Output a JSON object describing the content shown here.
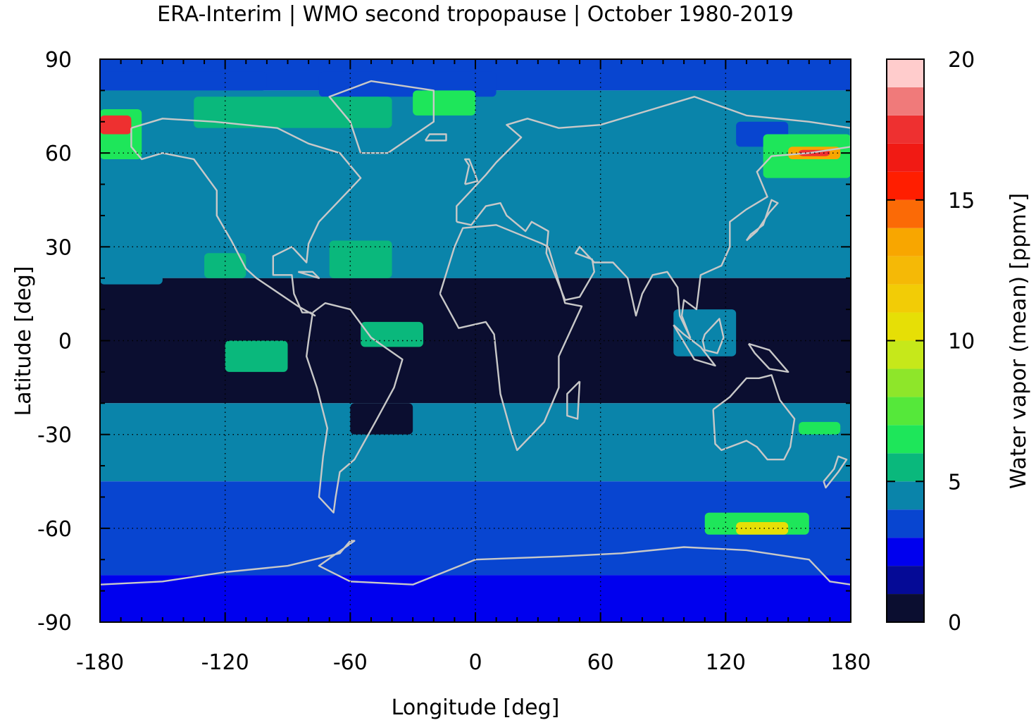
{
  "chart_data": {
    "type": "heatmap",
    "title": "ERA-Interim | WMO second tropopause | October 1980-2019",
    "xlabel": "Longitude [deg]",
    "ylabel": "Latitude [deg]",
    "colorbar_label": "Water vapor (mean) [ppmv]",
    "xlim": [
      -180,
      180
    ],
    "ylim": [
      -90,
      90
    ],
    "x_ticks": [
      "-180",
      "-120",
      "-60",
      "0",
      "60",
      "120",
      "180"
    ],
    "y_ticks": [
      "90",
      "60",
      "30",
      "0",
      "-30",
      "-60",
      "-90"
    ],
    "x_tick_values": [
      -180,
      -120,
      -60,
      0,
      60,
      120,
      180
    ],
    "y_tick_values": [
      90,
      60,
      30,
      0,
      -30,
      -60,
      -90
    ],
    "colorbar_ticks": [
      "20",
      "15",
      "10",
      "5",
      "0"
    ],
    "colorbar_tick_values": [
      20,
      15,
      10,
      5,
      0
    ],
    "colorbar_range": [
      0,
      20
    ],
    "grid": true,
    "coastlines": true,
    "colorbar_levels": [
      {
        "lo": 0,
        "hi": 1,
        "color": "#0b0e30"
      },
      {
        "lo": 1,
        "hi": 2,
        "color": "#050a96"
      },
      {
        "lo": 2,
        "hi": 3,
        "color": "#0000ee"
      },
      {
        "lo": 3,
        "hi": 4,
        "color": "#0845d0"
      },
      {
        "lo": 4,
        "hi": 5,
        "color": "#0a84aa"
      },
      {
        "lo": 5,
        "hi": 6,
        "color": "#0ab87c"
      },
      {
        "lo": 6,
        "hi": 7,
        "color": "#1ee65a"
      },
      {
        "lo": 7,
        "hi": 8,
        "color": "#55e83a"
      },
      {
        "lo": 8,
        "hi": 9,
        "color": "#8ee62a"
      },
      {
        "lo": 9,
        "hi": 10,
        "color": "#c6e81a"
      },
      {
        "lo": 10,
        "hi": 11,
        "color": "#e6df06"
      },
      {
        "lo": 11,
        "hi": 12,
        "color": "#f2cc06"
      },
      {
        "lo": 12,
        "hi": 13,
        "color": "#f5b906"
      },
      {
        "lo": 13,
        "hi": 14,
        "color": "#f8a600"
      },
      {
        "lo": 14,
        "hi": 15,
        "color": "#fb6a06"
      },
      {
        "lo": 15,
        "hi": 16,
        "color": "#ff1e00"
      },
      {
        "lo": 16,
        "hi": 17,
        "color": "#f11a14"
      },
      {
        "lo": 17,
        "hi": 18,
        "color": "#ee3030"
      },
      {
        "lo": 18,
        "hi": 19,
        "color": "#f07a7a"
      },
      {
        "lo": 19,
        "hi": 20,
        "color": "#ffcccc"
      }
    ],
    "zonal_bands": [
      {
        "lat_from": 90,
        "lat_to": 80,
        "value": 3.5
      },
      {
        "lat_from": 80,
        "lat_to": 20,
        "value": 4.5
      },
      {
        "lat_from": 20,
        "lat_to": -20,
        "value": 0.5
      },
      {
        "lat_from": -20,
        "lat_to": -45,
        "value": 4.5
      },
      {
        "lat_from": -45,
        "lat_to": -75,
        "value": 3.5
      },
      {
        "lat_from": -75,
        "lat_to": -90,
        "value": 2.5
      }
    ],
    "regions": [
      {
        "lon": [
          -180,
          -100
        ],
        "lat": [
          86,
          80
        ],
        "value": 3.5
      },
      {
        "lon": [
          -75,
          10
        ],
        "lat": [
          86,
          78
        ],
        "value": 3.5
      },
      {
        "lon": [
          -180,
          -160
        ],
        "lat": [
          74,
          58
        ],
        "value": 6.5
      },
      {
        "lon": [
          -180,
          -165
        ],
        "lat": [
          72,
          66
        ],
        "value": 17
      },
      {
        "lon": [
          -135,
          -40
        ],
        "lat": [
          78,
          68
        ],
        "value": 5.5
      },
      {
        "lon": [
          -30,
          0
        ],
        "lat": [
          80,
          72
        ],
        "value": 6.5
      },
      {
        "lon": [
          125,
          150
        ],
        "lat": [
          70,
          62
        ],
        "value": 3.5
      },
      {
        "lon": [
          138,
          180
        ],
        "lat": [
          66,
          52
        ],
        "value": 6.5
      },
      {
        "lon": [
          150,
          175
        ],
        "lat": [
          62,
          58
        ],
        "value": 13
      },
      {
        "lon": [
          155,
          170
        ],
        "lat": [
          61,
          59
        ],
        "value": 17
      },
      {
        "lon": [
          -180,
          -150
        ],
        "lat": [
          26,
          18
        ],
        "value": 4.5
      },
      {
        "lon": [
          -110,
          -85
        ],
        "lat": [
          28,
          20
        ],
        "value": 4.5
      },
      {
        "lon": [
          -130,
          -110
        ],
        "lat": [
          28,
          20
        ],
        "value": 5.5
      },
      {
        "lon": [
          -70,
          -40
        ],
        "lat": [
          32,
          20
        ],
        "value": 5.5
      },
      {
        "lon": [
          -15,
          40
        ],
        "lat": [
          32,
          20
        ],
        "value": 4.5
      },
      {
        "lon": [
          95,
          125
        ],
        "lat": [
          10,
          -5
        ],
        "value": 4.5
      },
      {
        "lon": [
          -55,
          -25
        ],
        "lat": [
          6,
          -2
        ],
        "value": 5.5
      },
      {
        "lon": [
          -120,
          -90
        ],
        "lat": [
          0,
          -10
        ],
        "value": 5.5
      },
      {
        "lon": [
          -60,
          -30
        ],
        "lat": [
          -20,
          -30
        ],
        "value": 0.5
      },
      {
        "lon": [
          155,
          175
        ],
        "lat": [
          -26,
          -30
        ],
        "value": 6.5
      },
      {
        "lon": [
          110,
          160
        ],
        "lat": [
          -55,
          -62
        ],
        "value": 6.5
      },
      {
        "lon": [
          125,
          150
        ],
        "lat": [
          -58,
          -62
        ],
        "value": 10.5
      }
    ]
  }
}
